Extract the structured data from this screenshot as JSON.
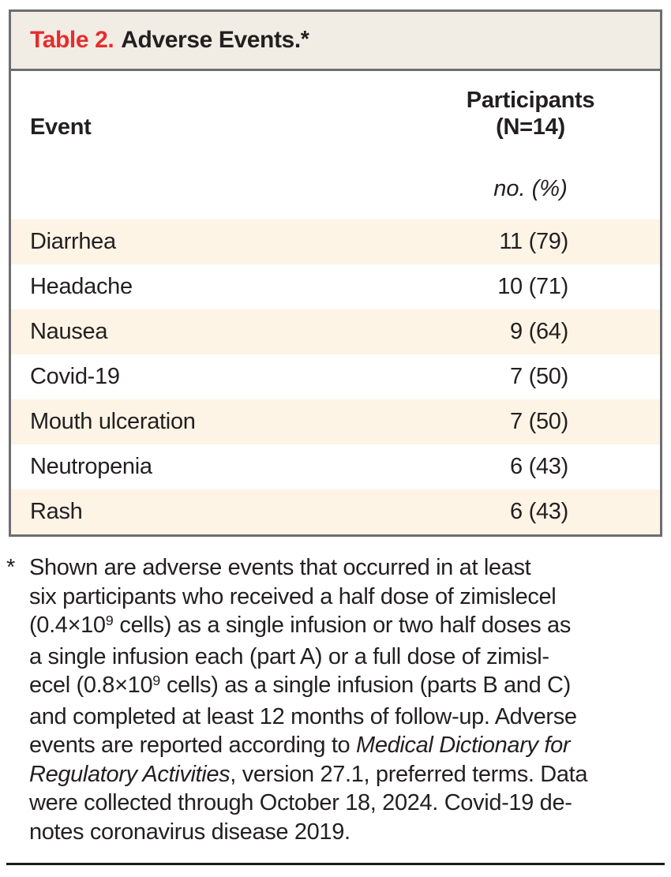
{
  "colors": {
    "title_red": "#e62d2d",
    "title_bar_bg": "#f1ede4",
    "row_stripe_bg": "#fdf4e6",
    "border_gray": "#6d6e71",
    "text_black": "#231f20",
    "bottom_rule": "#1a1a1a"
  },
  "table": {
    "title": {
      "label": "Table 2.",
      "text": "Adverse Events.",
      "footnote_marker": "*"
    },
    "header": {
      "event": "Event",
      "participants_line1": "Participants",
      "participants_line2": "(N=14)",
      "unit": "no. (%)"
    },
    "rows": [
      {
        "event": "Diarrhea",
        "value": "11 (79)"
      },
      {
        "event": "Headache",
        "value": "10 (71)"
      },
      {
        "event": "Nausea",
        "value": "9 (64)"
      },
      {
        "event": "Covid-19",
        "value": "7 (50)"
      },
      {
        "event": "Mouth ulceration",
        "value": "7 (50)"
      },
      {
        "event": "Neutropenia",
        "value": "6 (43)"
      },
      {
        "event": "Rash",
        "value": "6 (43)"
      }
    ]
  },
  "footnote": {
    "marker": "*",
    "lines": [
      [
        [
          "Shown are adverse events that occurred in at least",
          ""
        ]
      ],
      [
        [
          "six participants who received a half dose of zimislecel",
          ""
        ]
      ],
      [
        [
          "(0.4×10",
          ""
        ],
        [
          "9",
          "s"
        ],
        [
          " cells) as a single infusion or two half doses as",
          ""
        ]
      ],
      [
        [
          "a single infusion each (part A) or a full dose of zimisl-",
          ""
        ]
      ],
      [
        [
          "ecel (0.8×10",
          ""
        ],
        [
          "9",
          "s"
        ],
        [
          " cells) as a single infusion (parts B and C)",
          ""
        ]
      ],
      [
        [
          "and completed at least 12 months of follow-up. Adverse",
          ""
        ]
      ],
      [
        [
          "events are reported according to ",
          ""
        ],
        [
          "Medical Dictionary for",
          "i"
        ]
      ],
      [
        [
          "Regulatory Activities",
          "i"
        ],
        [
          ", version 27.1, preferred terms. Data",
          ""
        ]
      ],
      [
        [
          "were collected through October 18, 2024. Covid-19 de-",
          ""
        ]
      ],
      [
        [
          "notes coronavirus disease 2019.",
          ""
        ]
      ]
    ]
  }
}
